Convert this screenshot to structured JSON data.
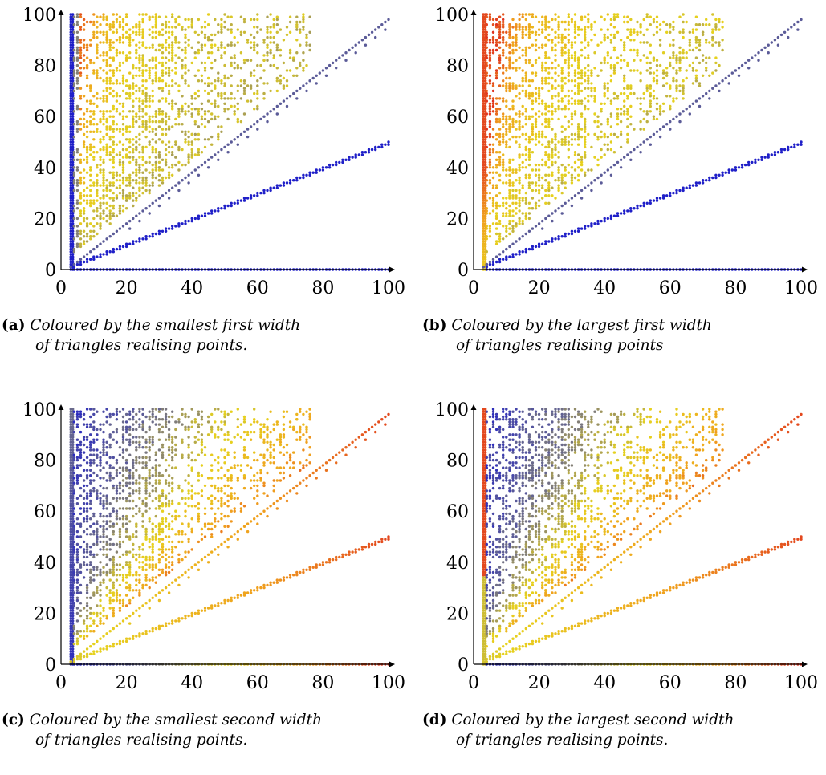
{
  "chart_data": [
    {
      "type": "scatter",
      "panel": "a",
      "caption_label": "(a)",
      "caption_line1": "Coloured by the smallest first width",
      "caption_line2": "of triangles realising points.",
      "xlim": [
        0,
        100
      ],
      "ylim": [
        0,
        100
      ],
      "xticks": [
        "0",
        "20",
        "40",
        "60",
        "80",
        "100"
      ],
      "yticks": [
        "0",
        "20",
        "40",
        "60",
        "80",
        "100"
      ],
      "grid": false,
      "colour_scale": [
        "#1f1fc8",
        "#6a6a8c",
        "#e6d21e",
        "#f0a01e",
        "#e0321e"
      ],
      "series": [
        {
          "values_x": [
            3,
            100
          ],
          "values_y": [
            0,
            100
          ],
          "note": "vertical band x=3..4 (blue)"
        },
        {
          "values_x": [
            3,
            100
          ],
          "values_y": [
            0,
            0
          ],
          "note": "horizontal band y=0 (blue)"
        },
        {
          "values_x": [
            3,
            100
          ],
          "values_y": [
            1,
            49
          ],
          "note": "ray y≈x/2 (blue)"
        },
        {
          "values_x": [
            3,
            100
          ],
          "values_y": [
            2,
            98
          ],
          "note": "ray y≈x (grey-blue)"
        },
        {
          "values_x": [
            4,
            75
          ],
          "values_y": [
            5,
            100
          ],
          "note": "scattered cloud above diagonal (yellow/orange/red)"
        }
      ]
    },
    {
      "type": "scatter",
      "panel": "b",
      "caption_label": "(b)",
      "caption_line1": "Coloured by the largest first width",
      "caption_line2": "of triangles realising points",
      "xlim": [
        0,
        100
      ],
      "ylim": [
        0,
        100
      ],
      "xticks": [
        "0",
        "20",
        "40",
        "60",
        "80",
        "100"
      ],
      "yticks": [
        "0",
        "20",
        "40",
        "60",
        "80",
        "100"
      ],
      "grid": false,
      "colour_scale": [
        "#1f1fc8",
        "#6a6a8c",
        "#e6d21e",
        "#f0a01e",
        "#e0321e"
      ]
    },
    {
      "type": "scatter",
      "panel": "c",
      "caption_label": "(c)",
      "caption_line1": "Coloured by the smallest second width",
      "caption_line2": "of triangles realising points.",
      "xlim": [
        0,
        100
      ],
      "ylim": [
        0,
        100
      ],
      "xticks": [
        "0",
        "20",
        "40",
        "60",
        "80",
        "100"
      ],
      "yticks": [
        "0",
        "20",
        "40",
        "60",
        "80",
        "100"
      ],
      "grid": false,
      "colour_scale": [
        "#1f1fc8",
        "#6a6a8c",
        "#e6d21e",
        "#f0a01e",
        "#e0321e"
      ]
    },
    {
      "type": "scatter",
      "panel": "d",
      "caption_label": "(d)",
      "caption_line1": "Coloured by the largest second width",
      "caption_line2": "of triangles realising points.",
      "xlim": [
        0,
        100
      ],
      "ylim": [
        0,
        100
      ],
      "xticks": [
        "0",
        "20",
        "40",
        "60",
        "80",
        "100"
      ],
      "yticks": [
        "0",
        "20",
        "40",
        "60",
        "80",
        "100"
      ],
      "grid": false,
      "colour_scale": [
        "#1f1fc8",
        "#6a6a8c",
        "#e6d21e",
        "#f0a01e",
        "#e0321e"
      ]
    }
  ]
}
